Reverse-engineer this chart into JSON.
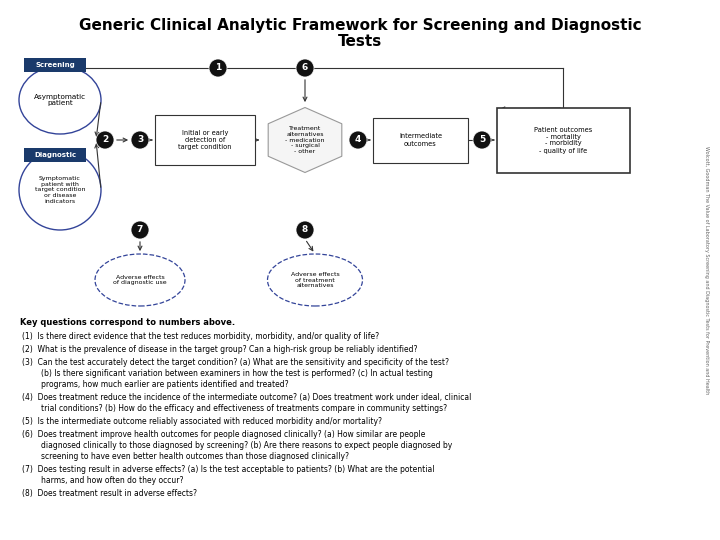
{
  "title_line1": "Generic Clinical Analytic Framework for Screening and Diagnostic",
  "title_line2": "Tests",
  "title_fontsize": 11,
  "bg_color": "#ffffff",
  "sidebar_text": "Wolcott, Goodman The Value of Laboratory Screening and Diagnostic Tests for Prevention and Health",
  "screening_label": "Screening",
  "diagnostic_label": "Diagnostic",
  "label_bg": "#1a3a6b",
  "label_fg": "#ffffff",
  "node_circle_color": "#111111",
  "node_text_color": "#ffffff",
  "arrow_color": "#333333",
  "key_header": "Key questions correspond to numbers above.",
  "questions": [
    "(1)  Is there direct evidence that the test reduces morbidity, morbidity, and/or quality of life?",
    "(2)  What is the prevalence of disease in the target group? Can a high-risk group be reliably identified?",
    "(3)  Can the test accurately detect the target condition? (a) What are the sensitivity and specificity of the test?\n        (b) Is there significant variation between examiners in how the test is performed? (c) In actual testing\n        programs, how much earlier are patients identified and treated?",
    "(4)  Does treatment reduce the incidence of the intermediate outcome? (a) Does treatment work under ideal, clinical\n        trial conditions? (b) How do the efficacy and effectiveness of treatments compare in community settings?",
    "(5)  Is the intermediate outcome reliably associated with reduced morbidity and/or mortality?",
    "(6)  Does treatment improve health outcomes for people diagnosed clinically? (a) How similar are people\n        diagnosed clinically to those diagnosed by screening? (b) Are there reasons to expect people diagnosed by\n        screening to have even better health outcomes than those diagnosed clinically?",
    "(7)  Does testing result in adverse effects? (a) Is the test acceptable to patients? (b) What are the potential\n        harms, and how often do they occur?",
    "(8)  Does treatment result in adverse effects?"
  ]
}
